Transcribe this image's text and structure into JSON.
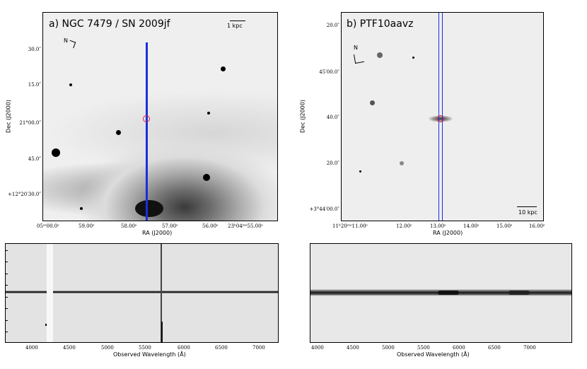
{
  "panel_a": {
    "title": "a)  NGC 7479 / SN 2009jf",
    "scale_label": "1 kpc",
    "north_label": "N",
    "y_axis_label": "Dec (J2000)",
    "x_axis_label": "RA (J2000)",
    "y_ticks": [
      "30.0″",
      "15.0″",
      "21°00.0″",
      "45.0″",
      "+12°20′30.0″"
    ],
    "x_ticks": [
      "05ˢˢ00.0ˢ",
      "59.00ˢ",
      "58.00ˢ",
      "57.00ˢ",
      "56.00ˢ",
      "23ʰ04ᵐˢ55.00ˢ"
    ],
    "colors": {
      "slit": "#1a2ee0",
      "circle": "#e0203a"
    }
  },
  "panel_b": {
    "title": "b)  PTF10aavz",
    "scale_label": "10 kpc",
    "north_label": "N",
    "y_axis_label": "Dec (J2000)",
    "x_axis_label": "RA (J2000)",
    "y_ticks": [
      "20.0″",
      "45′00.0″",
      "40.0″",
      "20.0″",
      "+3°44′00.0″"
    ],
    "x_ticks": [
      "11ʰ20ᵐˢ11.00ˢ",
      "12.00ˢ",
      "13.00ˢ",
      "14.00ˢ",
      "15.00ˢ",
      "16.00ˢ"
    ]
  },
  "spectrum_a": {
    "x_axis_label": "Observed Wavelength (Å)",
    "x_ticks": [
      "4000",
      "4500",
      "5000",
      "5500",
      "6000",
      "6500",
      "7000"
    ]
  },
  "spectrum_b": {
    "x_axis_label": "Observed Wavelength (Å)",
    "x_ticks": [
      "4000",
      "4500",
      "5000",
      "5500",
      "6000",
      "6500",
      "7000"
    ]
  }
}
